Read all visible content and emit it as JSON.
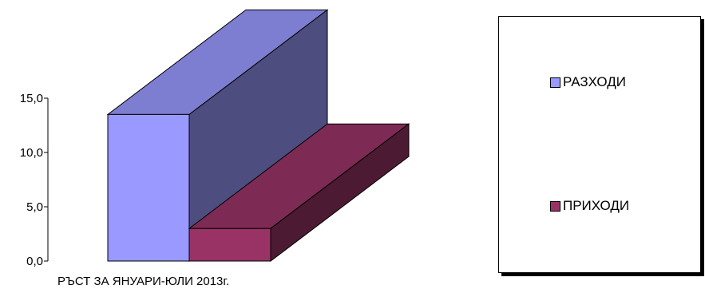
{
  "chart_data": {
    "type": "bar",
    "categories": [
      "РЪСТ ЗА ЯНУАРИ-ЮЛИ 2013г."
    ],
    "series": [
      {
        "name": "РАЗХОДИ",
        "values": [
          13.5
        ],
        "color": "#9999ff"
      },
      {
        "name": "ПРИХОДИ",
        "values": [
          3.0
        ],
        "color": "#993366"
      }
    ],
    "yticks": [
      "0,0",
      "5,0",
      "10,0",
      "15,0"
    ],
    "ylim": [
      0,
      15
    ],
    "legend": "right",
    "grid": false
  }
}
